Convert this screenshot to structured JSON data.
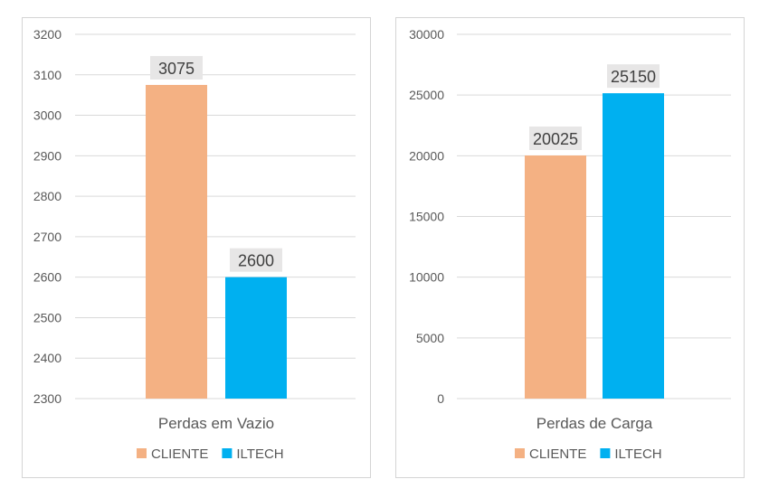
{
  "chart_data": [
    {
      "type": "bar",
      "categories": [
        "Perdas em Vazio"
      ],
      "series": [
        {
          "name": "CLIENTE",
          "values": [
            3075
          ],
          "color": "#F4B183"
        },
        {
          "name": "ILTECH",
          "values": [
            2600
          ],
          "color": "#00B0F0"
        }
      ],
      "ylim": [
        2300,
        3200
      ],
      "yticks": [
        2300,
        2400,
        2500,
        2600,
        2700,
        2800,
        2900,
        3000,
        3100,
        3200
      ],
      "data_labels": true,
      "grid": true,
      "legend": "bottom"
    },
    {
      "type": "bar",
      "categories": [
        "Perdas de Carga"
      ],
      "series": [
        {
          "name": "CLIENTE",
          "values": [
            20025
          ],
          "color": "#F4B183"
        },
        {
          "name": "ILTECH",
          "values": [
            25150
          ],
          "color": "#00B0F0"
        }
      ],
      "ylim": [
        0,
        30000
      ],
      "yticks": [
        0,
        5000,
        10000,
        15000,
        20000,
        25000,
        30000
      ],
      "data_labels": true,
      "grid": true,
      "legend": "bottom"
    }
  ]
}
